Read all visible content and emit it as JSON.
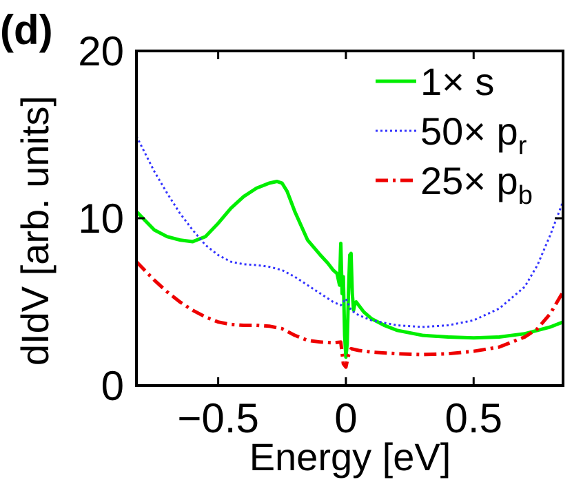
{
  "chart_data": {
    "type": "line",
    "panel_label": "(d)",
    "title": "",
    "xlabel": "Energy [eV]",
    "ylabel": "dIdV [arb. units]",
    "xlim": [
      -0.82,
      0.85
    ],
    "ylim": [
      0,
      20
    ],
    "xticks": [
      -0.5,
      0,
      0.5
    ],
    "xtick_labels": [
      "−0.5",
      "0",
      "0.5"
    ],
    "yticks": [
      0,
      10,
      20
    ],
    "ytick_labels": [
      "0",
      "10",
      "20"
    ],
    "grid": false,
    "legend_position": "top-right",
    "series": [
      {
        "name": "1× s",
        "legend_main": "1× s",
        "legend_sub": "",
        "color": "#00ee00",
        "style": "solid",
        "x": [
          -0.82,
          -0.75,
          -0.7,
          -0.65,
          -0.6,
          -0.55,
          -0.5,
          -0.45,
          -0.4,
          -0.35,
          -0.3,
          -0.27,
          -0.25,
          -0.23,
          -0.2,
          -0.15,
          -0.1,
          -0.07,
          -0.05,
          -0.035,
          -0.025,
          -0.02,
          -0.015,
          -0.01,
          -0.005,
          0.0,
          0.005,
          0.01,
          0.015,
          0.02,
          0.025,
          0.03,
          0.035,
          0.04,
          0.05,
          0.07,
          0.1,
          0.15,
          0.2,
          0.3,
          0.4,
          0.5,
          0.6,
          0.7,
          0.8,
          0.85
        ],
        "y": [
          10.4,
          9.3,
          8.9,
          8.7,
          8.6,
          8.9,
          9.7,
          10.6,
          11.3,
          11.8,
          12.1,
          12.2,
          12.1,
          11.6,
          10.4,
          8.7,
          7.8,
          7.3,
          6.9,
          6.7,
          6.0,
          8.5,
          5.5,
          6.5,
          3.0,
          1.7,
          2.5,
          5.5,
          7.8,
          7.9,
          5.5,
          4.5,
          4.9,
          5.0,
          4.8,
          4.4,
          4.0,
          3.6,
          3.3,
          3.0,
          2.9,
          2.85,
          2.9,
          3.1,
          3.5,
          3.8
        ]
      },
      {
        "name": "50× p_r",
        "legend_main": "50× p",
        "legend_sub": "r",
        "color": "#3333ff",
        "style": "dotted",
        "x": [
          -0.82,
          -0.75,
          -0.7,
          -0.65,
          -0.6,
          -0.55,
          -0.5,
          -0.45,
          -0.4,
          -0.35,
          -0.3,
          -0.25,
          -0.2,
          -0.15,
          -0.1,
          -0.05,
          -0.02,
          0.0,
          0.02,
          0.05,
          0.1,
          0.2,
          0.3,
          0.4,
          0.5,
          0.6,
          0.7,
          0.75,
          0.8,
          0.85
        ],
        "y": [
          14.9,
          12.8,
          11.5,
          10.3,
          9.3,
          8.4,
          7.8,
          7.4,
          7.25,
          7.2,
          7.1,
          6.9,
          6.5,
          6.0,
          5.5,
          5.0,
          4.8,
          5.2,
          4.5,
          4.2,
          3.9,
          3.6,
          3.5,
          3.6,
          3.9,
          4.6,
          5.9,
          7.2,
          9.0,
          11.0
        ]
      },
      {
        "name": "25× p_b",
        "legend_main": "25× p",
        "legend_sub": "b",
        "color": "#ee0000",
        "style": "dashdot",
        "x": [
          -0.82,
          -0.75,
          -0.7,
          -0.65,
          -0.6,
          -0.55,
          -0.5,
          -0.45,
          -0.4,
          -0.35,
          -0.3,
          -0.25,
          -0.2,
          -0.15,
          -0.1,
          -0.05,
          -0.02,
          -0.01,
          0.0,
          0.01,
          0.02,
          0.05,
          0.1,
          0.2,
          0.3,
          0.4,
          0.5,
          0.6,
          0.7,
          0.75,
          0.8,
          0.85
        ],
        "y": [
          7.4,
          6.3,
          5.6,
          5.0,
          4.5,
          4.1,
          3.8,
          3.65,
          3.6,
          3.6,
          3.55,
          3.4,
          3.0,
          2.7,
          2.6,
          2.55,
          2.6,
          1.3,
          1.1,
          1.8,
          2.2,
          2.1,
          2.0,
          1.9,
          1.85,
          1.9,
          2.05,
          2.3,
          2.9,
          3.4,
          4.3,
          5.6
        ]
      }
    ]
  }
}
